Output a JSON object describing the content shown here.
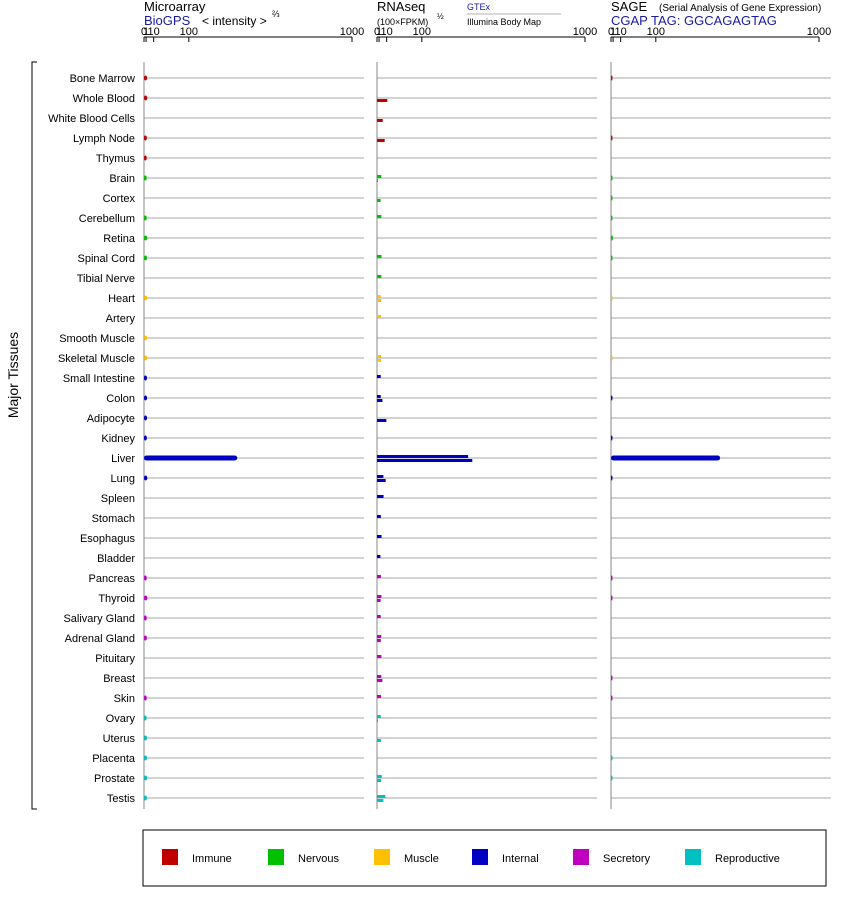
{
  "chart_data": {
    "type": "bar",
    "orientation": "horizontal",
    "scale": "power-2/3",
    "y_group_label": "Major Tissues",
    "tissues": [
      "Bone Marrow",
      "Whole Blood",
      "White Blood Cells",
      "Lymph Node",
      "Thymus",
      "Brain",
      "Cortex",
      "Cerebellum",
      "Retina",
      "Spinal Cord",
      "Tibial Nerve",
      "Heart",
      "Artery",
      "Smooth Muscle",
      "Skeletal Muscle",
      "Small Intestine",
      "Colon",
      "Adipocyte",
      "Kidney",
      "Liver",
      "Lung",
      "Spleen",
      "Stomach",
      "Esophagus",
      "Bladder",
      "Pancreas",
      "Thyroid",
      "Salivary Gland",
      "Adrenal Gland",
      "Pituitary",
      "Breast",
      "Skin",
      "Ovary",
      "Uterus",
      "Placenta",
      "Prostate",
      "Testis"
    ],
    "tissue_groups": [
      "immune",
      "immune",
      "immune",
      "immune",
      "immune",
      "nervous",
      "nervous",
      "nervous",
      "nervous",
      "nervous",
      "nervous",
      "muscle",
      "muscle",
      "muscle",
      "muscle",
      "internal",
      "internal",
      "internal",
      "internal",
      "internal",
      "internal",
      "internal",
      "internal",
      "internal",
      "internal",
      "secretory",
      "secretory",
      "secretory",
      "secretory",
      "secretory",
      "secretory",
      "secretory",
      "reproductive",
      "reproductive",
      "reproductive",
      "reproductive",
      "reproductive"
    ],
    "group_colors": {
      "immune": "#c00000",
      "nervous": "#00c000",
      "muscle": "#ffc000",
      "internal": "#0000c0",
      "secretory": "#c000c0",
      "reproductive": "#00c0c0"
    },
    "legend": [
      {
        "group": "immune",
        "label": "Immune"
      },
      {
        "group": "nervous",
        "label": "Nervous"
      },
      {
        "group": "muscle",
        "label": "Muscle"
      },
      {
        "group": "internal",
        "label": "Internal"
      },
      {
        "group": "secretory",
        "label": "Secretory"
      },
      {
        "group": "reproductive",
        "label": "Reproductive"
      }
    ],
    "panels": [
      {
        "id": "microarray",
        "title": "Microarray",
        "source": "BioGPS",
        "unit": "< intensity >",
        "unit_exp": "⅔",
        "xlim": [
          0,
          1000
        ],
        "ticks": [
          0,
          1,
          10,
          100,
          1000
        ],
        "values": [
          1.8,
          1.9,
          null,
          1.6,
          1.5,
          1.5,
          null,
          1.5,
          2.0,
          1.8,
          null,
          2.0,
          null,
          1.9,
          1.9,
          1.7,
          1.8,
          1.8,
          1.6,
          300,
          2.0,
          null,
          null,
          null,
          null,
          1.5,
          2.0,
          1.5,
          1.6,
          null,
          null,
          1.5,
          1.4,
          1.7,
          1.8,
          1.9,
          1.6
        ],
        "values2": []
      },
      {
        "id": "rnaseq",
        "title": "RNAseq",
        "unit": "(100×FPKM)",
        "unit_exp": "½",
        "source_primary": "GTEx",
        "source_secondary": "Illumina Body Map",
        "xlim": [
          0,
          1000
        ],
        "ticks": [
          0,
          1,
          10,
          100,
          1000
        ],
        "values": [
          null,
          null,
          null,
          null,
          null,
          3.0,
          null,
          3.0,
          null,
          3.2,
          3.0,
          2.3,
          2.6,
          null,
          2.6,
          2.4,
          2.4,
          null,
          null,
          290,
          5.4,
          5.6,
          2.5,
          3.2,
          2.1,
          2.6,
          3.1,
          2.4,
          2.9,
          3.1,
          3.0,
          2.7,
          2.4,
          null,
          null,
          3.5,
          8.0
        ],
        "values2": [
          null,
          11.0,
          4.6,
          7.1,
          null,
          0.1,
          2.3,
          null,
          null,
          null,
          null,
          2.9,
          null,
          null,
          2.5,
          null,
          4.2,
          9.5,
          null,
          310,
          8.5,
          null,
          null,
          null,
          null,
          null,
          2.3,
          null,
          2.5,
          null,
          4.2,
          null,
          0.05,
          2.6,
          null,
          2.9,
          5.4
        ]
      },
      {
        "id": "sage",
        "title": "SAGE",
        "subtitle": "(Serial Analysis of Gene Expression)",
        "source": "CGAP TAG: GGCAGAGTAG",
        "xlim": [
          0,
          1000
        ],
        "ticks": [
          0,
          1,
          10,
          100,
          1000
        ],
        "values": [
          0.05,
          null,
          null,
          0.05,
          null,
          0.05,
          0.05,
          0.05,
          0.9,
          0.05,
          null,
          0.03,
          null,
          null,
          0.03,
          null,
          0.05,
          null,
          0.05,
          380,
          0.05,
          null,
          null,
          null,
          null,
          0.05,
          0.05,
          null,
          null,
          null,
          0.05,
          0.2,
          null,
          null,
          0.03,
          0.03,
          null
        ],
        "values2": []
      }
    ]
  }
}
